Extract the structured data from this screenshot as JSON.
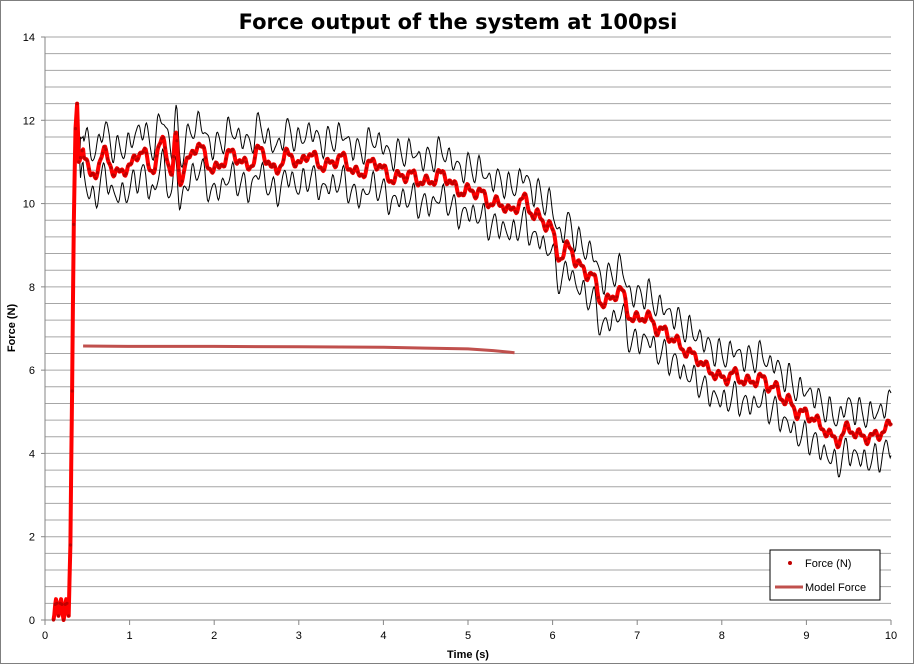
{
  "chart_data": {
    "type": "line",
    "title": "Force output of the system at 100psi",
    "xlabel": "Time (s)",
    "ylabel": "Force (N)",
    "xlim": [
      0,
      10
    ],
    "ylim": [
      0,
      14
    ],
    "x_ticks": [
      "0",
      "1",
      "2",
      "3",
      "4",
      "5",
      "6",
      "7",
      "8",
      "9",
      "10"
    ],
    "y_ticks": [
      "0",
      "2",
      "4",
      "6",
      "8",
      "10",
      "12",
      "14"
    ],
    "grid": "horizontal, every 0.4 N",
    "legend_position": "bottom-right",
    "colors": {
      "force": "#ff0000",
      "force_markers": "#c00000",
      "model": "#c0504d",
      "envelope": "#000000",
      "grid": "#a6a6a6"
    },
    "series": [
      {
        "name": "Force (N)",
        "style": "markers",
        "x": [
          0.1,
          0.13,
          0.16,
          0.19,
          0.22,
          0.25,
          0.28,
          0.3,
          0.32,
          0.34,
          0.36,
          0.38,
          0.4,
          0.45,
          0.55,
          0.7,
          0.85,
          1.0,
          1.15,
          1.25,
          1.4,
          1.5,
          1.55,
          1.6,
          1.65,
          1.8,
          2.0,
          2.2,
          2.4,
          2.55,
          2.7,
          2.9,
          3.0,
          3.1,
          3.3,
          3.5,
          3.7,
          3.9,
          4.1,
          4.3,
          4.5,
          4.7,
          4.9,
          5.1,
          5.3,
          5.4,
          5.5,
          5.65,
          5.8,
          5.95,
          6.1,
          6.2,
          6.3,
          6.45,
          6.6,
          6.8,
          6.95,
          7.1,
          7.25,
          7.4,
          7.55,
          7.7,
          7.85,
          8.0,
          8.15,
          8.3,
          8.45,
          8.6,
          8.75,
          8.9,
          9.05,
          9.2,
          9.35,
          9.5,
          9.65,
          9.8,
          9.95,
          10.0
        ],
        "values": [
          0.0,
          0.5,
          0.1,
          0.5,
          0.0,
          0.5,
          0.1,
          1.8,
          5.5,
          9.5,
          11.8,
          12.4,
          11.0,
          11.3,
          10.6,
          11.2,
          10.7,
          10.9,
          11.3,
          10.8,
          11.5,
          10.7,
          11.6,
          10.5,
          10.9,
          11.4,
          10.8,
          11.2,
          10.9,
          11.3,
          10.8,
          11.2,
          10.9,
          11.2,
          10.9,
          11.1,
          10.7,
          11.0,
          10.6,
          10.7,
          10.5,
          10.7,
          10.3,
          10.3,
          10.0,
          10.0,
          9.8,
          10.1,
          9.7,
          9.5,
          8.7,
          9.0,
          8.5,
          8.3,
          7.6,
          7.9,
          7.2,
          7.3,
          7.0,
          6.8,
          6.5,
          6.3,
          6.0,
          5.8,
          5.9,
          5.7,
          5.8,
          5.6,
          5.3,
          5.0,
          4.9,
          4.6,
          4.3,
          4.6,
          4.4,
          4.4,
          4.6,
          4.7
        ]
      },
      {
        "name": "Model Force",
        "style": "line",
        "x": [
          0.45,
          1.0,
          2.0,
          3.0,
          4.0,
          4.5,
          5.0,
          5.3,
          5.55
        ],
        "values": [
          6.58,
          6.57,
          6.57,
          6.56,
          6.55,
          6.53,
          6.51,
          6.47,
          6.42
        ]
      }
    ],
    "envelope": {
      "upper_offset": 0.55,
      "lower_offset": 0.55
    }
  }
}
